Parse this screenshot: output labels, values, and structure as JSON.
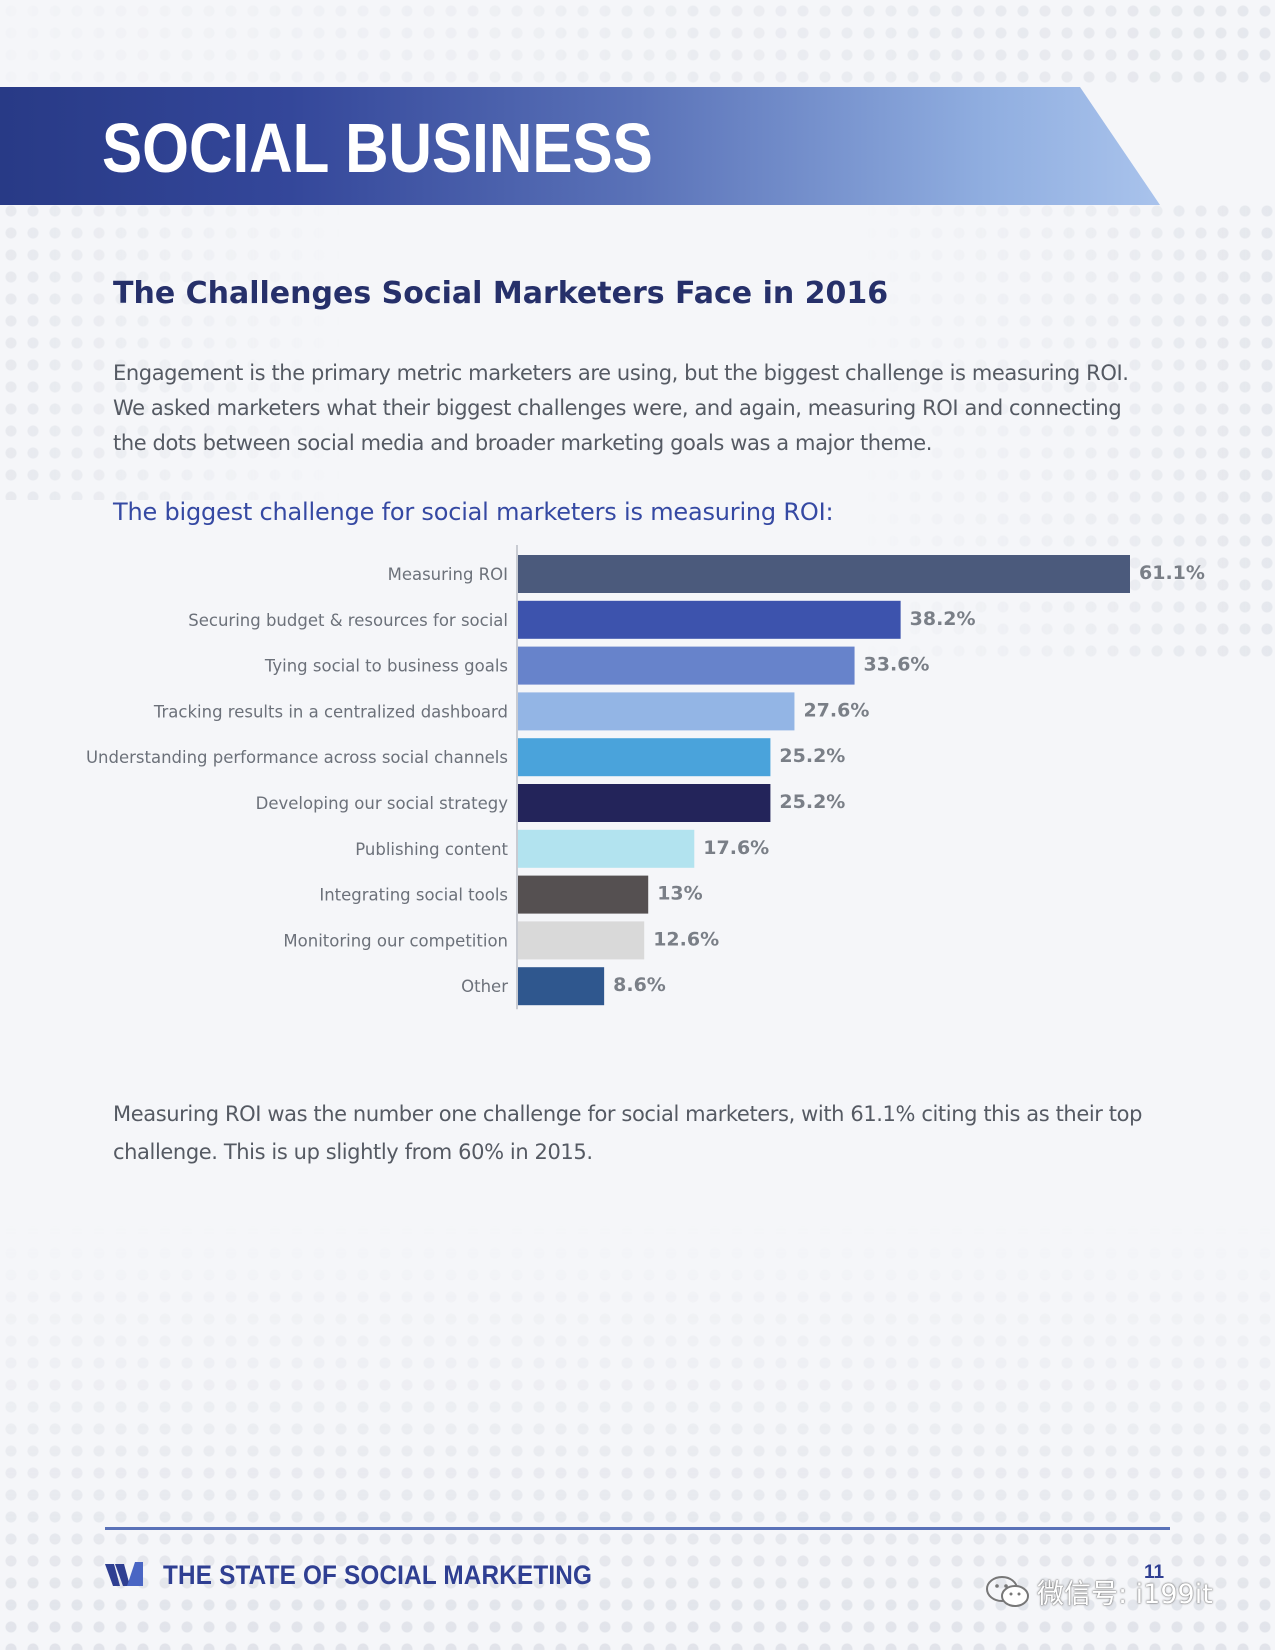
{
  "section_banner": {
    "title": "SOCIAL BUSINESS"
  },
  "page": {
    "heading": "The Challenges Social Marketers Face in 2016",
    "intro": [
      "Engagement is the primary metric marketers are using, but the biggest challenge is measuring ROI.",
      "We asked marketers what their biggest challenges were, and again, measuring ROI and connecting",
      "the dots between social media and broader marketing goals was a major theme."
    ],
    "summary": [
      "Measuring ROI was the number one challenge for social marketers, with 61.1% citing this as their top",
      "challenge. This is up slightly from 60% in 2015."
    ]
  },
  "chart_data": {
    "type": "bar",
    "orientation": "horizontal",
    "title": "The biggest challenge for social marketers is measuring ROI:",
    "categories": [
      "Measuring ROI",
      "Securing budget & resources for social",
      "Tying social to business goals",
      "Tracking results in a centralized dashboard",
      "Understanding performance across social channels",
      "Developing our social strategy",
      "Publishing content",
      "Integrating social tools",
      "Monitoring our competition",
      "Other"
    ],
    "values": [
      61.1,
      38.2,
      33.6,
      27.6,
      25.2,
      25.2,
      17.6,
      13,
      12.6,
      8.6
    ],
    "data_labels": [
      "61.1%",
      "38.2%",
      "33.6%",
      "27.6%",
      "25.2%",
      "25.2%",
      "17.6%",
      "13%",
      "12.6%",
      "8.6%"
    ],
    "colors": [
      "#4b5a7c",
      "#3d53ad",
      "#6783cb",
      "#93b5e5",
      "#4aa3db",
      "#23245a",
      "#b2e3ef",
      "#555051",
      "#d9d9d9",
      "#2f578e"
    ],
    "xlim": [
      0,
      61.1
    ],
    "grid": false,
    "legend": "none"
  },
  "footer": {
    "brand": "THE STATE OF SOCIAL MARKETING",
    "page_number": "11",
    "brand_color": "#2f3f92"
  },
  "watermark": {
    "text": "微信号: i199it"
  }
}
